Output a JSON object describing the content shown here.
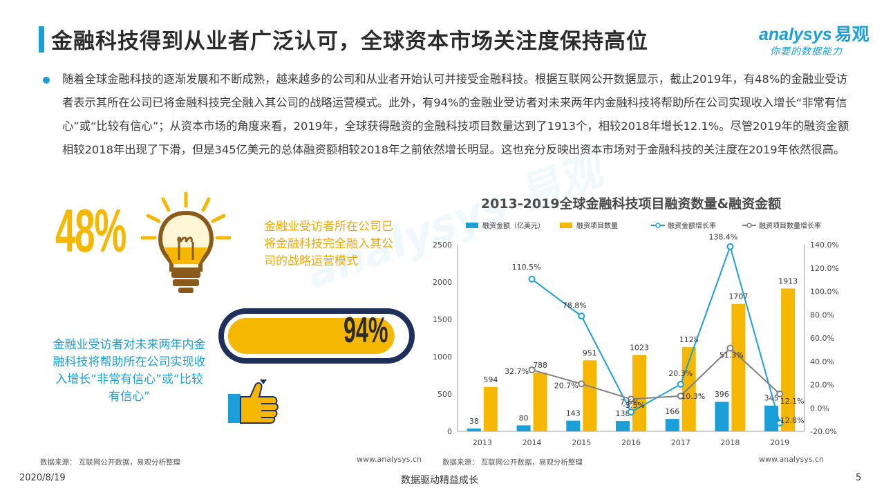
{
  "header": {
    "title": "金融科技得到从业者广泛认可，全球资本市场关注度保持高位",
    "logo_main": "nalysys",
    "logo_cn": "易观",
    "logo_sub": "你要的数据能力"
  },
  "intro": {
    "text": "随着全球金融科技的逐渐发展和不断成熟，越来越多的公司和从业者开始认可并接受金融科技。根据互联网公开数据显示，截止2019年，有48%的金融业受访者表示其所在公司已将金融科技完全融入其公司的战略运营模式。此外，有94%的金融业受访者对未来两年内金融科技将帮助所在公司实现收入增长“非常有信心”或“比较有信心”；从资本市场的角度来看，2019年，全球获得融资的金融科技项目数量达到了1913个，相较2018年增长12.1%。尽管2019年的融资金额相较2018年出现了下滑，但是345亿美元的总体融资额相较2018年之前依然增长明显。这也充分反映出资本市场对于金融科技的关注度在2019年依然很高。"
  },
  "stat48": {
    "value": "48%",
    "text": "金融业受访者所在公司已将金融科技完全融入其公司的战略运营模式",
    "icon": "lightbulb-icon"
  },
  "stat94": {
    "value": "94%",
    "fraction": 0.94,
    "text": "金融业受访者对未来两年内金融科技将帮助所在公司实现收入增长“非常有信心”或“比较有信心”",
    "icon": "thumbs-up-icon"
  },
  "colors": {
    "accent_blue": "#1a9fd9",
    "accent_yellow": "#f5b700",
    "dark_navy": "#1e2f5a",
    "gray_line": "#808080"
  },
  "chart_data": {
    "type": "bar",
    "title": "2013-2019全球金融科技项目融资数量&融资金额",
    "categories": [
      "2013",
      "2014",
      "2015",
      "2016",
      "2017",
      "2018",
      "2019"
    ],
    "ylim": [
      0,
      2500
    ],
    "yticks": [
      "0",
      "500",
      "1000",
      "1500",
      "2000",
      "2500"
    ],
    "y2lim": [
      -20,
      140
    ],
    "y2ticks": [
      "-20.0%",
      "0.0%",
      "20.0%",
      "40.0%",
      "60.0%",
      "80.0%",
      "100.0%",
      "120.0%",
      "140.0%"
    ],
    "grid": false,
    "legend_position": "top",
    "series": [
      {
        "name": "融资金额（亿美元）",
        "kind": "bar",
        "axis": "left",
        "color": "#1a9fd9",
        "values": [
          38,
          80,
          143,
          138,
          166,
          396,
          345
        ],
        "labels": [
          "38",
          "80",
          "143",
          "138",
          "166",
          "396",
          "345"
        ]
      },
      {
        "name": "融资项目数量",
        "kind": "bar",
        "axis": "left",
        "color": "#f5b700",
        "values": [
          594,
          788,
          951,
          1023,
          1128,
          1707,
          1913
        ],
        "labels": [
          "594",
          "788",
          "951",
          "1023",
          "1128",
          "1707",
          "1913"
        ]
      },
      {
        "name": "融资金额增长率",
        "kind": "line",
        "axis": "right",
        "color": "#1a9fd9",
        "values": [
          null,
          110.5,
          78.8,
          -3.5,
          20.3,
          138.4,
          -12.8
        ],
        "labels": [
          "",
          "110.5%",
          "78.8%",
          "-3.5%",
          "20.3%",
          "138.4%",
          "-12.8%"
        ]
      },
      {
        "name": "融资项目数量增长率",
        "kind": "line",
        "axis": "right",
        "color": "#808080",
        "values": [
          null,
          32.7,
          20.7,
          7.6,
          10.3,
          51.3,
          12.1
        ],
        "labels": [
          "",
          "32.7%",
          "20.7%",
          "7.6%",
          "10.3%",
          "51.3%",
          "12.1%"
        ]
      }
    ]
  },
  "sources": {
    "left": "数据来源：  互联网公开数据，易观分析整理",
    "right": "数据来源：  互联网公开数据，易观分析整理",
    "url": "www.analysys.cn"
  },
  "footer": {
    "date": "2020/8/19",
    "slogan": "数据驱动精益成长",
    "page": "5"
  }
}
